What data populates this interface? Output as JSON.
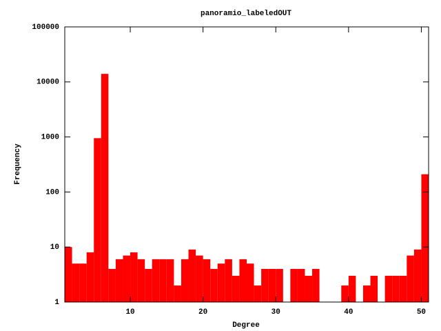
{
  "chart_data": {
    "type": "histogram",
    "title": "panoramio_labeledOUT",
    "x_label": "Degree",
    "y_label": "Frequency",
    "bins": [
      1,
      2,
      3,
      4,
      5,
      6,
      7,
      8,
      9,
      10,
      11,
      12,
      13,
      14,
      15,
      16,
      17,
      18,
      19,
      20,
      21,
      22,
      23,
      24,
      25,
      26,
      27,
      28,
      29,
      30,
      31,
      32,
      33,
      34,
      35,
      36,
      37,
      38,
      39,
      40,
      41,
      42,
      43,
      44,
      45,
      46,
      47,
      48,
      49,
      50,
      51
    ],
    "values": [
      10,
      5,
      5,
      8,
      950,
      14000,
      4,
      6,
      7,
      8,
      6,
      4,
      6,
      6,
      6,
      2,
      6,
      9,
      7,
      6,
      4,
      5,
      6,
      3,
      6,
      5,
      2,
      4,
      4,
      4,
      null,
      4,
      4,
      3,
      4,
      null,
      null,
      null,
      2,
      3,
      null,
      2,
      3,
      null,
      3,
      3,
      3,
      7,
      9,
      210
    ],
    "color": "#ff0000",
    "log_y": true,
    "xlim": [
      1,
      51
    ],
    "xticks": [
      10,
      20,
      30,
      40,
      50
    ],
    "ylim": [
      1,
      100000
    ],
    "yticks": [
      1,
      10,
      100,
      1000,
      10000,
      100000
    ]
  }
}
